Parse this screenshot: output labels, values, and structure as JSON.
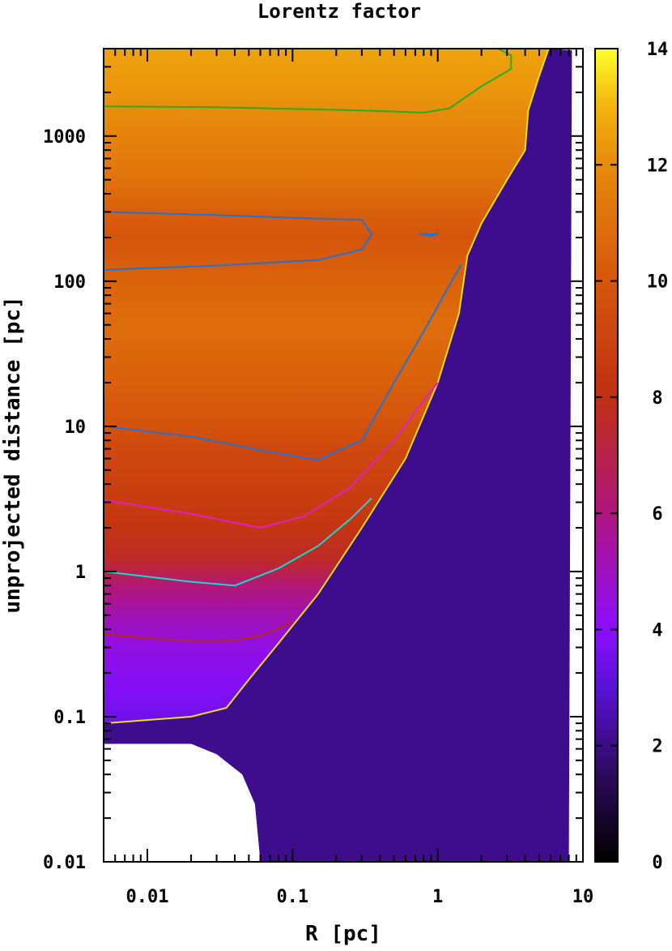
{
  "chart_data": {
    "type": "heatmap",
    "title": "Lorentz factor",
    "xlabel": "R [pc]",
    "ylabel": "unprojected distance [pc]",
    "x_scale": "log",
    "y_scale": "log",
    "xlim": [
      0.005,
      10
    ],
    "ylim": [
      0.01,
      4000
    ],
    "x_ticks": [
      {
        "value": 0.01,
        "label": "0.01"
      },
      {
        "value": 0.1,
        "label": "0.1"
      },
      {
        "value": 1,
        "label": "1"
      },
      {
        "value": 10,
        "label": "10"
      }
    ],
    "y_ticks": [
      {
        "value": 0.01,
        "label": "0.01"
      },
      {
        "value": 0.1,
        "label": "0.1"
      },
      {
        "value": 1,
        "label": "1"
      },
      {
        "value": 10,
        "label": "10"
      },
      {
        "value": 100,
        "label": "100"
      },
      {
        "value": 1000,
        "label": "1000"
      }
    ],
    "colorbar": {
      "range": [
        0,
        14
      ],
      "ticks": [
        {
          "value": 0,
          "label": "0"
        },
        {
          "value": 2,
          "label": "2"
        },
        {
          "value": 4,
          "label": "4"
        },
        {
          "value": 6,
          "label": "6"
        },
        {
          "value": 8,
          "label": "8"
        },
        {
          "value": 10,
          "label": "10"
        },
        {
          "value": 12,
          "label": "12"
        },
        {
          "value": 14,
          "label": "14"
        }
      ],
      "stops": [
        {
          "value": 0,
          "color": "#000000"
        },
        {
          "value": 1.5,
          "color": "#2c0a5c"
        },
        {
          "value": 3,
          "color": "#5a11d6"
        },
        {
          "value": 4,
          "color": "#8c0eff"
        },
        {
          "value": 6,
          "color": "#b0157f"
        },
        {
          "value": 8,
          "color": "#c02f12"
        },
        {
          "value": 10,
          "color": "#d6560b"
        },
        {
          "value": 12,
          "color": "#e88a0b"
        },
        {
          "value": 13,
          "color": "#f2b40e"
        },
        {
          "value": 14,
          "color": "#ffff2a"
        }
      ]
    },
    "gamma_field": {
      "inner_rows": [
        {
          "y": 0.065,
          "gamma": 3.4
        },
        {
          "y": 0.09,
          "gamma": 3.4
        },
        {
          "y": 0.15,
          "gamma": 3.8
        },
        {
          "y": 0.3,
          "gamma": 4.4
        },
        {
          "y": 0.5,
          "gamma": 5.2
        },
        {
          "y": 0.8,
          "gamma": 6.2
        },
        {
          "y": 1.2,
          "gamma": 7.6
        },
        {
          "y": 2,
          "gamma": 8.3
        },
        {
          "y": 3,
          "gamma": 8.6
        },
        {
          "y": 6,
          "gamma": 9.2
        },
        {
          "y": 10,
          "gamma": 9.8
        },
        {
          "y": 20,
          "gamma": 10.4
        },
        {
          "y": 50,
          "gamma": 10.9
        },
        {
          "y": 100,
          "gamma": 10.5
        },
        {
          "y": 150,
          "gamma": 10.2
        },
        {
          "y": 200,
          "gamma": 9.9
        },
        {
          "y": 300,
          "gamma": 10.4
        },
        {
          "y": 600,
          "gamma": 11.3
        },
        {
          "y": 1000,
          "gamma": 11.7
        },
        {
          "y": 1800,
          "gamma": 12.2
        },
        {
          "y": 4000,
          "gamma": 12.6
        }
      ],
      "background_gamma": 2.1
    },
    "jet_boundary": [
      [
        0.005,
        0.065
      ],
      [
        0.02,
        0.065
      ],
      [
        0.03,
        0.055
      ],
      [
        0.045,
        0.04
      ],
      [
        0.055,
        0.025
      ],
      [
        0.06,
        0.01
      ],
      [
        1.0,
        0.01
      ],
      [
        2.0,
        0.01
      ],
      [
        4.0,
        0.01
      ],
      [
        8.0,
        0.01
      ],
      [
        8.4,
        3900
      ],
      [
        5.5,
        4000
      ],
      [
        0.005,
        4000
      ]
    ],
    "lobe_gap": [
      [
        0.06,
        0.01
      ],
      [
        0.055,
        0.025
      ],
      [
        0.045,
        0.04
      ],
      [
        0.03,
        0.055
      ],
      [
        0.02,
        0.065
      ],
      [
        0.005,
        0.065
      ],
      [
        0.005,
        0.01
      ]
    ],
    "contours": [
      {
        "color": "#e6e020",
        "points": [
          [
            0.005,
            0.09
          ],
          [
            0.02,
            0.1
          ],
          [
            0.035,
            0.115
          ],
          [
            0.05,
            0.18
          ],
          [
            0.08,
            0.32
          ],
          [
            0.15,
            0.7
          ],
          [
            0.3,
            2.0
          ],
          [
            0.6,
            6
          ],
          [
            1.0,
            20
          ],
          [
            1.4,
            60
          ],
          [
            1.6,
            150
          ],
          [
            2.0,
            250
          ],
          [
            3.0,
            500
          ],
          [
            4.0,
            800
          ],
          [
            4.2,
            1500
          ],
          [
            5.0,
            2600
          ],
          [
            5.8,
            4000
          ]
        ]
      },
      {
        "color": "#b02d10",
        "points": [
          [
            0.005,
            0.37
          ],
          [
            0.02,
            0.33
          ],
          [
            0.035,
            0.33
          ],
          [
            0.06,
            0.36
          ],
          [
            0.1,
            0.45
          ]
        ]
      },
      {
        "color": "#19d7d7",
        "points": [
          [
            0.005,
            1.0
          ],
          [
            0.02,
            0.85
          ],
          [
            0.04,
            0.8
          ],
          [
            0.08,
            1.05
          ],
          [
            0.15,
            1.5
          ],
          [
            0.25,
            2.3
          ],
          [
            0.35,
            3.2
          ]
        ]
      },
      {
        "color": "#e21ec8",
        "points": [
          [
            0.005,
            3.1
          ],
          [
            0.02,
            2.5
          ],
          [
            0.06,
            2.0
          ],
          [
            0.12,
            2.4
          ],
          [
            0.25,
            3.8
          ],
          [
            0.5,
            8
          ],
          [
            0.8,
            15
          ],
          [
            1.0,
            20
          ]
        ]
      },
      {
        "color": "#1e72d8",
        "points": [
          [
            0.005,
            10
          ],
          [
            0.02,
            8.5
          ],
          [
            0.08,
            6.5
          ],
          [
            0.15,
            5.9
          ],
          [
            0.3,
            8
          ],
          [
            0.5,
            20
          ],
          [
            0.8,
            45
          ],
          [
            1.1,
            80
          ],
          [
            1.45,
            130
          ]
        ]
      },
      {
        "color": "#1e72d8",
        "points": [
          [
            0.005,
            300
          ],
          [
            0.03,
            285
          ],
          [
            0.15,
            270
          ],
          [
            0.3,
            265
          ],
          [
            0.35,
            210
          ],
          [
            0.3,
            165
          ],
          [
            0.15,
            140
          ],
          [
            0.03,
            128
          ],
          [
            0.005,
            120
          ]
        ]
      },
      {
        "color": "#1e72d8",
        "points": [
          [
            0.75,
            212
          ],
          [
            0.9,
            210
          ],
          [
            1.0,
            212
          ],
          [
            0.9,
            205
          ],
          [
            0.75,
            212
          ]
        ]
      },
      {
        "color": "#21b021",
        "points": [
          [
            0.005,
            1600
          ],
          [
            0.03,
            1580
          ],
          [
            0.3,
            1500
          ],
          [
            0.8,
            1450
          ],
          [
            1.2,
            1550
          ],
          [
            2.0,
            2200
          ],
          [
            3.2,
            2900
          ],
          [
            3.2,
            3600
          ],
          [
            2.6,
            4000
          ]
        ]
      }
    ]
  }
}
